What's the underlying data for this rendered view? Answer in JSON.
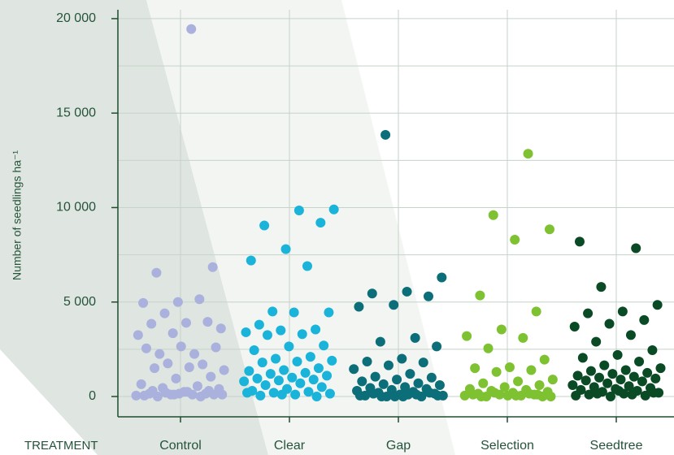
{
  "chart_data": {
    "type": "strip",
    "y_label": "Number of seedlings ha⁻¹",
    "x_label": "TREATMENT",
    "ylim": [
      -1075,
      20470
    ],
    "yticks": [
      0,
      {
        "value": 5000,
        "label": "5 000"
      },
      {
        "value": 10000,
        "label": "10 000"
      },
      {
        "value": 15000,
        "label": "15 000"
      },
      {
        "value": 20000,
        "label": "20 000"
      }
    ],
    "minor_yticks": [
      2500,
      7500,
      12500,
      17500
    ],
    "grid": true,
    "series": [
      {
        "name": "Control",
        "color": "#a9b1dc",
        "values": [
          19450,
          6550,
          6850,
          5000,
          4950,
          5150,
          4400,
          3600,
          3900,
          3850,
          3950,
          3350,
          3250,
          2250,
          2250,
          2600,
          2650,
          2550,
          1700,
          1750,
          1400,
          1550,
          1500,
          1050,
          950,
          650,
          550,
          450,
          400,
          250,
          150,
          150,
          100,
          50,
          100,
          0,
          100,
          150,
          50,
          0,
          200,
          100,
          250,
          300,
          300,
          100
        ]
      },
      {
        "name": "Clear",
        "color": "#1ab3d9",
        "values": [
          9900,
          9850,
          9050,
          9200,
          7800,
          7200,
          6900,
          4500,
          4450,
          4450,
          3800,
          3550,
          3500,
          3400,
          3300,
          3250,
          2700,
          2650,
          2450,
          2100,
          2000,
          1900,
          1850,
          1800,
          1500,
          1400,
          1350,
          1250,
          1200,
          1100,
          1000,
          950,
          900,
          850,
          800,
          700,
          600,
          500,
          400,
          300,
          250,
          200,
          150,
          100,
          50,
          0,
          100,
          200
        ]
      },
      {
        "name": "Gap",
        "color": "#0b6e78",
        "values": [
          13850,
          6300,
          5550,
          5450,
          5300,
          4850,
          4750,
          3100,
          2900,
          2650,
          2000,
          1850,
          1800,
          1650,
          1450,
          1200,
          1050,
          1000,
          900,
          800,
          700,
          650,
          600,
          500,
          450,
          400,
          350,
          300,
          250,
          200,
          150,
          100,
          50,
          0,
          0,
          50,
          100,
          150,
          200,
          0,
          50,
          100,
          0,
          50,
          0
        ]
      },
      {
        "name": "Selection",
        "color": "#7ec232",
        "values": [
          12850,
          9600,
          8850,
          8300,
          5350,
          4500,
          3550,
          3200,
          3100,
          2550,
          1950,
          1550,
          1500,
          1400,
          1300,
          900,
          800,
          700,
          600,
          500,
          400,
          350,
          300,
          250,
          200,
          150,
          100,
          100,
          50,
          50,
          0,
          0,
          50,
          100,
          150,
          200,
          0,
          50,
          0,
          100
        ]
      },
      {
        "name": "Seedtree",
        "color": "#0a4a25",
        "values": [
          8200,
          7850,
          5800,
          4850,
          4500,
          4400,
          4050,
          3850,
          3700,
          3250,
          2900,
          2450,
          2200,
          2050,
          1850,
          1650,
          1500,
          1400,
          1350,
          1250,
          1200,
          1100,
          1050,
          1000,
          950,
          900,
          850,
          800,
          700,
          600,
          550,
          500,
          450,
          400,
          350,
          300,
          250,
          200,
          150,
          100,
          50,
          0,
          50,
          100,
          150,
          200,
          300
        ]
      }
    ]
  }
}
